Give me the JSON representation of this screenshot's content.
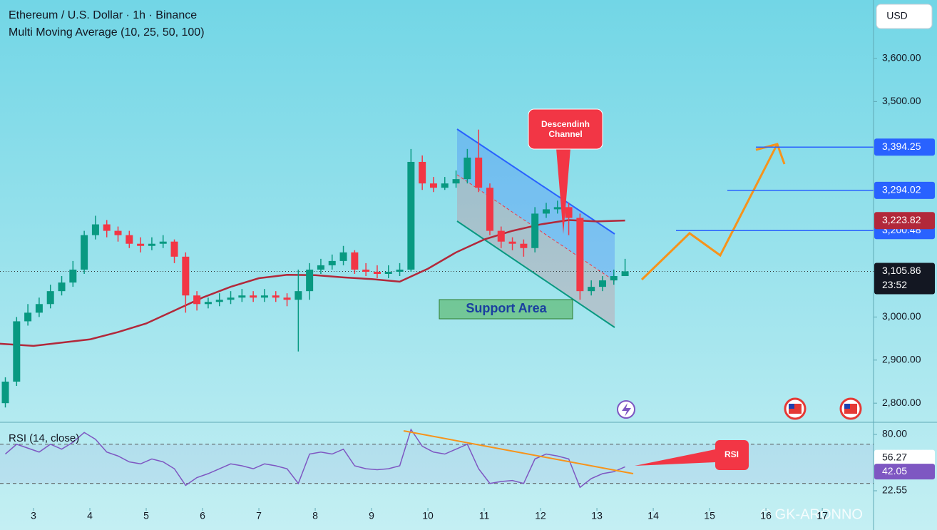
{
  "header": {
    "title": "Ethereum / U.S. Dollar · 1h · Binance",
    "indicator": "Multi Moving Average (10, 25, 50, 100)",
    "currency": "USD",
    "watermark": "© GK-ARONNO"
  },
  "chart_data": [
    {
      "type": "candlestick",
      "xlim": [
        2.405,
        17.91
      ],
      "xticks": [
        3,
        4,
        5,
        6,
        7,
        8,
        9,
        10,
        11,
        12,
        13,
        14,
        15,
        16,
        17
      ],
      "ylim": [
        2755.6,
        3735.8
      ],
      "yticks": [
        {
          "value": 2800,
          "label": "2,800.00"
        },
        {
          "value": 2900,
          "label": "2,900.00"
        },
        {
          "value": 3000,
          "label": "3,000.00"
        },
        {
          "value": 3500,
          "label": "3,500.00"
        },
        {
          "value": 3600,
          "label": "3,600.00"
        }
      ],
      "grid": false,
      "candles": {
        "up_color": "#089981",
        "down_color": "#f23645",
        "x": [
          2.5,
          2.7,
          2.9,
          3.1,
          3.3,
          3.5,
          3.7,
          3.9,
          4.1,
          4.3,
          4.5,
          4.7,
          4.9,
          5.1,
          5.3,
          5.5,
          5.7,
          5.9,
          6.1,
          6.3,
          6.5,
          6.7,
          6.9,
          7.1,
          7.3,
          7.5,
          7.7,
          7.9,
          8.1,
          8.3,
          8.5,
          8.7,
          8.9,
          9.1,
          9.3,
          9.5,
          9.7,
          9.9,
          10.1,
          10.3,
          10.5,
          10.7,
          10.9,
          11.1,
          11.3,
          11.5,
          11.7,
          11.9,
          12.1,
          12.3,
          12.5,
          12.7,
          12.9,
          13.1,
          13.3,
          13.5
        ],
        "open": [
          2800,
          2850,
          2990,
          3010,
          3030,
          3060,
          3080,
          3110,
          3190,
          3215,
          3200,
          3190,
          3170,
          3165,
          3170,
          3175,
          3140,
          3050,
          3030,
          3035,
          3040,
          3045,
          3050,
          3045,
          3050,
          3045,
          3040,
          3060,
          3110,
          3120,
          3130,
          3150,
          3110,
          3105,
          3100,
          3105,
          3110,
          3360,
          3310,
          3300,
          3310,
          3320,
          3370,
          3300,
          3200,
          3175,
          3170,
          3160,
          3240,
          3250,
          3255,
          3230,
          3060,
          3070,
          3085,
          3095
        ],
        "high": [
          2860,
          3000,
          3030,
          3045,
          3075,
          3095,
          3130,
          3200,
          3235,
          3225,
          3210,
          3200,
          3185,
          3185,
          3190,
          3180,
          3150,
          3060,
          3045,
          3055,
          3060,
          3065,
          3060,
          3065,
          3060,
          3055,
          3110,
          3125,
          3135,
          3145,
          3165,
          3155,
          3125,
          3120,
          3120,
          3125,
          3390,
          3375,
          3325,
          3325,
          3340,
          3390,
          3435,
          3310,
          3210,
          3185,
          3180,
          3255,
          3265,
          3270,
          3265,
          3240,
          3085,
          3095,
          3110,
          3135
        ],
        "low": [
          2790,
          2840,
          2980,
          3000,
          3020,
          3050,
          3070,
          3100,
          3180,
          3185,
          3175,
          3160,
          3150,
          3155,
          3160,
          3125,
          3010,
          3015,
          3020,
          3025,
          3030,
          3035,
          3035,
          3035,
          3035,
          3025,
          2920,
          3040,
          3100,
          3110,
          3120,
          3100,
          3095,
          3090,
          3090,
          3095,
          3105,
          3295,
          3290,
          3295,
          3300,
          3310,
          3290,
          3190,
          3160,
          3155,
          3140,
          3150,
          3230,
          3240,
          3190,
          3040,
          3050,
          3060,
          3075,
          3095
        ],
        "close": [
          2850,
          2990,
          3010,
          3030,
          3060,
          3080,
          3110,
          3190,
          3215,
          3200,
          3190,
          3170,
          3165,
          3170,
          3175,
          3140,
          3050,
          3030,
          3035,
          3040,
          3045,
          3050,
          3045,
          3050,
          3045,
          3040,
          3060,
          3110,
          3120,
          3130,
          3150,
          3110,
          3105,
          3100,
          3105,
          3110,
          3360,
          3310,
          3300,
          3310,
          3320,
          3370,
          3300,
          3200,
          3175,
          3170,
          3160,
          3240,
          3250,
          3255,
          3230,
          3060,
          3070,
          3085,
          3095,
          3106
        ]
      },
      "ma": {
        "color": "#b2283a",
        "x": [
          2.4,
          3,
          4,
          4.5,
          5,
          5.5,
          6,
          6.5,
          7,
          7.5,
          8,
          8.5,
          9,
          9.5,
          10,
          10.5,
          11,
          11.5,
          12,
          12.5,
          13,
          13.5
        ],
        "values": [
          2938,
          2933,
          2948,
          2965,
          2985,
          3015,
          3045,
          3070,
          3090,
          3098,
          3097,
          3092,
          3088,
          3082,
          3112,
          3150,
          3180,
          3200,
          3215,
          3225,
          3222,
          3224
        ],
        "last": {
          "value": 3223.82,
          "label": "3,223.82"
        }
      },
      "levels": [
        {
          "value": 3394.25,
          "label": "3,394.25"
        },
        {
          "value": 3294.02,
          "label": "3,294.02"
        },
        {
          "value": 3200.48,
          "label": "3,200.48"
        }
      ],
      "level_color": "#2962ff",
      "current": {
        "value": 3105.86,
        "label": "3,105.86",
        "countdown": "23:52"
      },
      "annotations": {
        "channel": "Descendinh Channel",
        "support": "Support Area"
      }
    },
    {
      "type": "line",
      "title": "RSI (14, close)",
      "color": "#7e57c2",
      "ylim": [
        5.1,
        92.36
      ],
      "yticks": [
        {
          "value": 80,
          "label": "80.00"
        },
        {
          "value": 22.55,
          "label": "22.55"
        }
      ],
      "band": [
        30,
        70
      ],
      "values": [
        60,
        70,
        66,
        62,
        70,
        65,
        72,
        82,
        75,
        62,
        58,
        52,
        50,
        55,
        52,
        45,
        28,
        36,
        40,
        45,
        50,
        48,
        45,
        50,
        48,
        45,
        30,
        60,
        62,
        60,
        65,
        48,
        45,
        44,
        45,
        48,
        85,
        68,
        62,
        60,
        65,
        70,
        45,
        30,
        32,
        33,
        30,
        55,
        60,
        58,
        55,
        26,
        35,
        40,
        42,
        47
      ],
      "tags": [
        {
          "value": 56.27,
          "label": "56.27"
        },
        {
          "value": 42.05,
          "label": "42.05"
        }
      ],
      "annotation": "RSI"
    }
  ]
}
